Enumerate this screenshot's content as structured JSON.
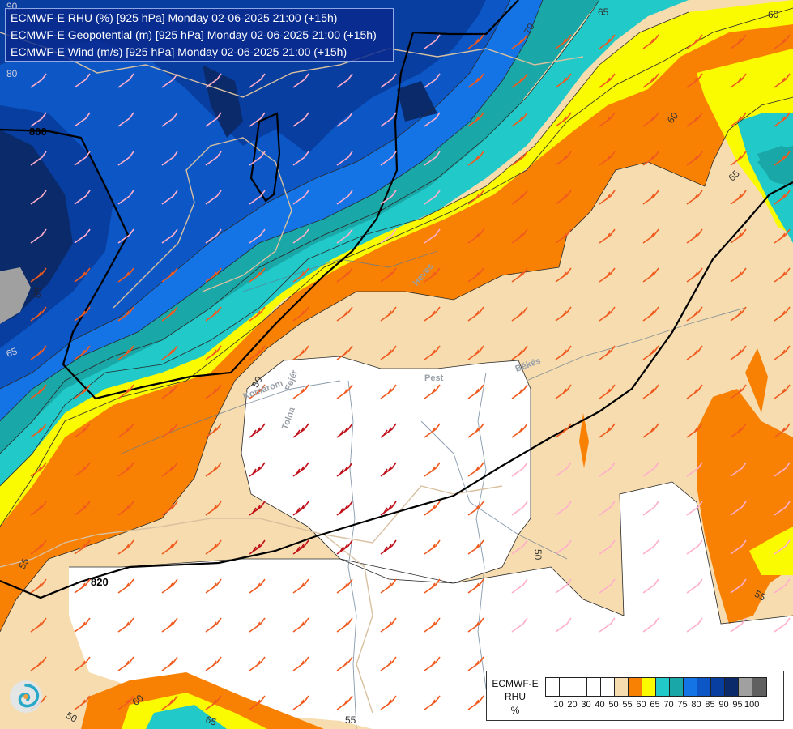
{
  "header": {
    "line1": "ECMWF-E RHU (%) [925 hPa] Monday 02-06-2025 21:00 (+15h)",
    "line2": "ECMWF-E Geopotential (m) [925 hPa] Monday 02-06-2025 21:00 (+15h)",
    "line3": "ECMWF-E Wind (m/s) [925 hPa] Monday 02-06-2025 21:00 (+15h)"
  },
  "legend": {
    "title_line1": "ECMWF-E",
    "title_line2": "RHU",
    "title_line3": "%",
    "ticks": [
      "10",
      "20",
      "30",
      "40",
      "50",
      "55",
      "60",
      "65",
      "70",
      "75",
      "80",
      "85",
      "90",
      "95",
      "100"
    ],
    "colors": [
      "#ffffff",
      "#ffffff",
      "#ffffff",
      "#ffffff",
      "#ffffff",
      "#f6dcae",
      "#f88104",
      "#fafa00",
      "#21c9c9",
      "#1aa7a7",
      "#1474e6",
      "#0c56c6",
      "#083ea0",
      "#0a2a6a",
      "#a0a0a0",
      "#606060"
    ]
  },
  "map_labels": {
    "geopotential": [
      "800",
      "820"
    ],
    "rhu_contours": [
      "65",
      "70",
      "60",
      "65",
      "60",
      "80",
      "85",
      "65",
      "90",
      "55",
      "50",
      "50",
      "55",
      "60",
      "65",
      "50",
      "55"
    ],
    "places": [
      "Pest",
      "Békés",
      "Heves",
      "Tolna",
      "Komárom",
      "Fejér"
    ]
  },
  "colors": {
    "rhu_50_55": "#f6dcae",
    "rhu_55_60": "#f88104",
    "rhu_60_65": "#fafa00",
    "rhu_65_70": "#21c9c9",
    "rhu_70_75": "#1aa7a7",
    "rhu_75_80": "#1474e6",
    "rhu_80_85": "#0c56c6",
    "rhu_85_90": "#083ea0",
    "rhu_90_95": "#0a2a6a",
    "rhu_95_100": "#a0a0a0",
    "wind_barb_strong": "#c0101a",
    "wind_barb_medium": "#f05a1e",
    "wind_barb_light": "#ffaecb",
    "geopotential_line": "#000000",
    "border_line": "#d8c0a0",
    "river_line": "#607890"
  },
  "icons": {
    "logo": "swirl-logo-icon"
  }
}
